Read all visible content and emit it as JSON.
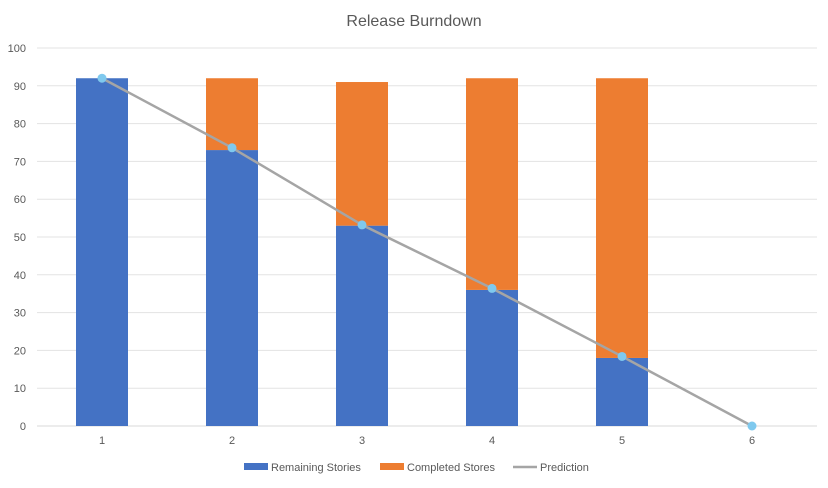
{
  "chart_data": {
    "type": "bar",
    "stacked": true,
    "title": "Release Burndown",
    "xlabel": "",
    "ylabel": "",
    "categories": [
      "1",
      "2",
      "3",
      "4",
      "5",
      "6"
    ],
    "ylim": [
      0,
      100
    ],
    "yticks": [
      0,
      10,
      20,
      30,
      40,
      50,
      60,
      70,
      80,
      90,
      100
    ],
    "grid": true,
    "legend_position": "bottom",
    "series": [
      {
        "name": "Remaining Stories",
        "kind": "bar",
        "color": "#4472c4",
        "values": [
          92,
          73,
          53,
          36,
          18,
          0
        ]
      },
      {
        "name": "Completed Stores",
        "kind": "bar",
        "color": "#ed7d31",
        "values": [
          0,
          19,
          38,
          56,
          74,
          0
        ]
      },
      {
        "name": "Prediction",
        "kind": "line",
        "color": "#a5a5a5",
        "marker_color": "#7fc9ee",
        "values": [
          92,
          73.6,
          53.2,
          36.4,
          18.4,
          0
        ]
      }
    ]
  }
}
